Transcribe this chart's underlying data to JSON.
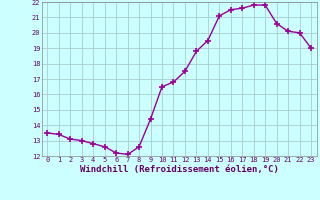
{
  "x": [
    0,
    1,
    2,
    3,
    4,
    5,
    6,
    7,
    8,
    9,
    10,
    11,
    12,
    13,
    14,
    15,
    16,
    17,
    18,
    19,
    20,
    21,
    22,
    23
  ],
  "y": [
    13.5,
    13.4,
    13.1,
    13.0,
    12.8,
    12.6,
    12.2,
    12.1,
    12.6,
    14.4,
    16.5,
    16.8,
    17.5,
    18.8,
    19.5,
    21.1,
    21.5,
    21.6,
    21.8,
    21.8,
    20.6,
    20.1,
    20.0,
    19.0
  ],
  "line_color": "#990099",
  "marker_color": "#990099",
  "bg_color": "#ccffff",
  "grid_color": "#aacccc",
  "xlabel": "Windchill (Refroidissement éolien,°C)",
  "xlabel_color": "#660066",
  "tick_color": "#660066",
  "ylim": [
    12,
    22
  ],
  "xlim": [
    -0.5,
    23.5
  ],
  "yticks": [
    12,
    13,
    14,
    15,
    16,
    17,
    18,
    19,
    20,
    21,
    22
  ],
  "xticks": [
    0,
    1,
    2,
    3,
    4,
    5,
    6,
    7,
    8,
    9,
    10,
    11,
    12,
    13,
    14,
    15,
    16,
    17,
    18,
    19,
    20,
    21,
    22,
    23
  ],
  "xlabel_fontsize": 6.5,
  "tick_fontsize": 5.0
}
